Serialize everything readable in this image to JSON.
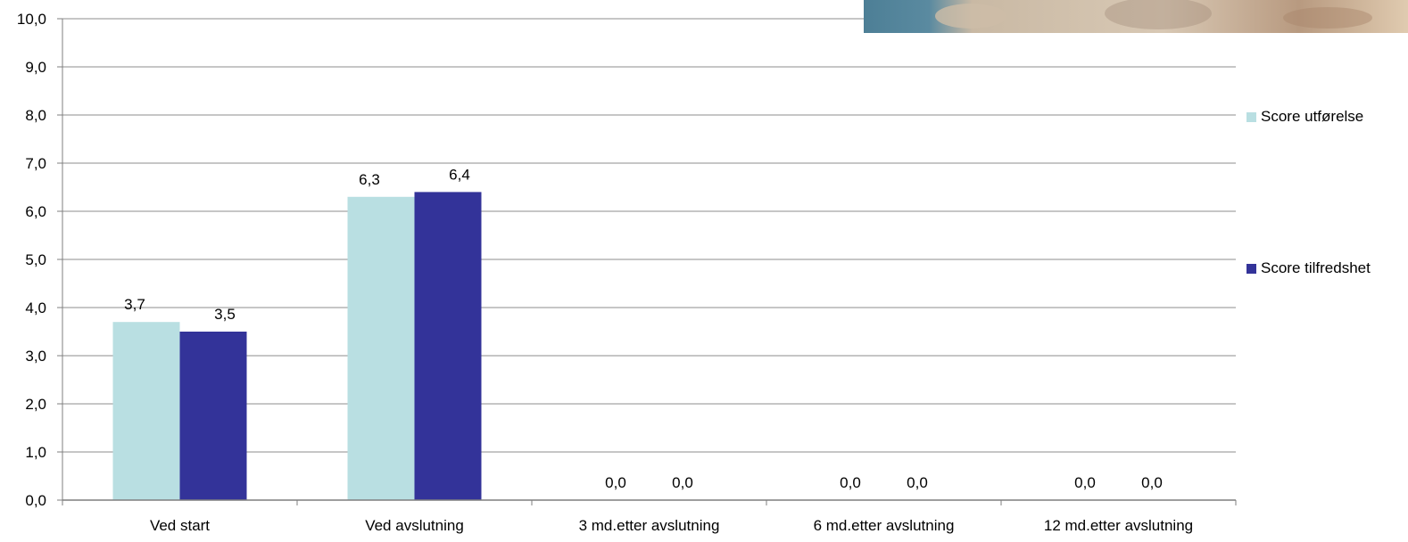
{
  "chart_data": {
    "type": "bar",
    "categories": [
      "Ved start",
      "Ved avslutning",
      "3 md.etter avslutning",
      "6 md.etter avslutning",
      "12 md.etter avslutning"
    ],
    "series": [
      {
        "name": "Score utførelse",
        "values": [
          3.7,
          6.3,
          0.0,
          0.0,
          0.0
        ],
        "labels": [
          "3,7",
          "6,3",
          "0,0",
          "0,0",
          "0,0"
        ],
        "color": "#b9dfe2"
      },
      {
        "name": "Score tilfredshet",
        "values": [
          3.5,
          6.4,
          0.0,
          0.0,
          0.0
        ],
        "labels": [
          "3,5",
          "6,4",
          "0,0",
          "0,0",
          "0,0"
        ],
        "color": "#333399"
      }
    ],
    "y_ticks": [
      0,
      1,
      2,
      3,
      4,
      5,
      6,
      7,
      8,
      9,
      10
    ],
    "y_tick_labels": [
      "0,0",
      "1,0",
      "2,0",
      "3,0",
      "4,0",
      "5,0",
      "6,0",
      "7,0",
      "8,0",
      "9,0",
      "10,0"
    ],
    "ylim": [
      0,
      10
    ],
    "title": "",
    "xlabel": "",
    "ylabel": "",
    "grid": true,
    "legend_position": "right"
  },
  "colors": {
    "gridline": "#8c8c8c",
    "axis": "#7f7f7f",
    "photo_tones": [
      "#4d7f96",
      "#c9b9a4",
      "#d8c8b4",
      "#9a8574"
    ]
  },
  "decoration": {
    "photo_corner_icon": "photo-fragment"
  }
}
